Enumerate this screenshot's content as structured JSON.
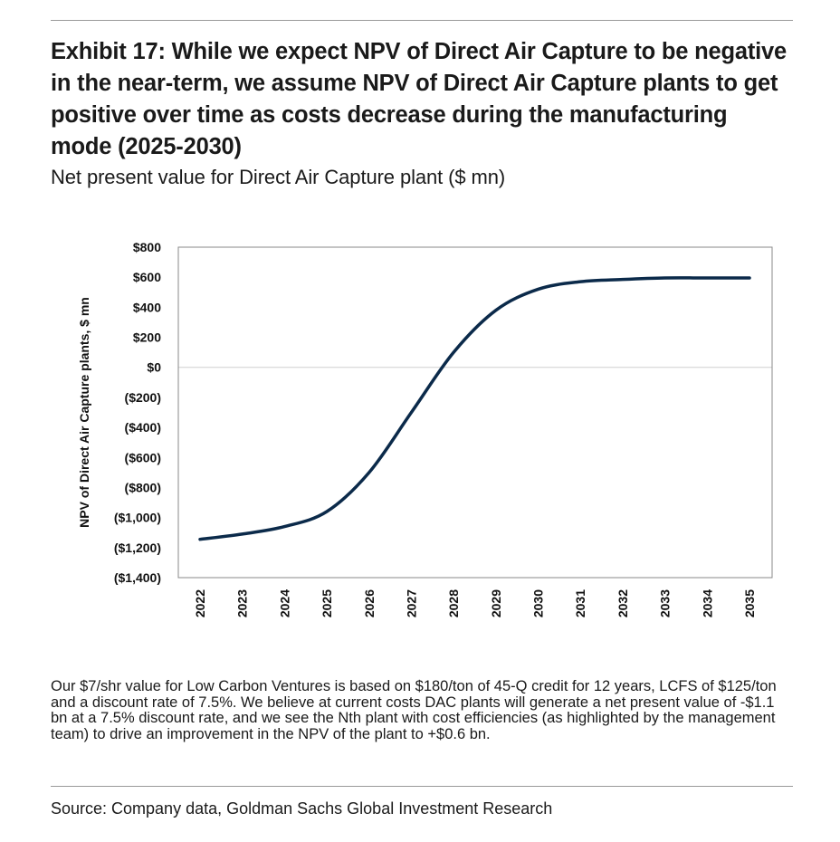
{
  "header": {
    "title": "Exhibit 17: While we expect NPV of Direct Air Capture to be negative in the near-term, we assume NPV of Direct Air Capture plants to get positive over time as costs decrease during the manufacturing mode (2025-2030)",
    "subtitle": "Net present value for Direct Air Capture plant ($ mn)"
  },
  "chart_data": {
    "type": "line",
    "title": "",
    "xlabel": "",
    "ylabel": "NPV of Direct Air Capture plants, $ mn",
    "x": [
      "2022",
      "2023",
      "2024",
      "2025",
      "2026",
      "2027",
      "2028",
      "2029",
      "2030",
      "2031",
      "2032",
      "2033",
      "2034",
      "2035"
    ],
    "series": [
      {
        "values": [
          -1145,
          -1110,
          -1060,
          -960,
          -700,
          -300,
          100,
          380,
          520,
          570,
          585,
          595,
          595,
          595
        ]
      }
    ],
    "ylim": [
      -1400,
      800
    ],
    "yticks": [
      800,
      600,
      400,
      200,
      0,
      -200,
      -400,
      -600,
      -800,
      -1000,
      -1200,
      -1400
    ],
    "ytick_labels": [
      "$800",
      "$600",
      "$400",
      "$200",
      "$0",
      "($200)",
      "($400)",
      "($600)",
      "($800)",
      "($1,000)",
      "($1,200)",
      "($1,400)"
    ],
    "grid": false,
    "zero_line": true,
    "legend": "none",
    "colors": {
      "series": "#0b2a4a",
      "zero_line": "#cfcfcf",
      "frame": "#8a8a8a"
    }
  },
  "note": "Our $7/shr value for Low Carbon Ventures is based on $180/ton of 45-Q credit for 12 years, LCFS of $125/ton and a discount rate of 7.5%. We believe at current costs DAC plants will generate a net present value of -$1.1 bn at a 7.5% discount rate, and we see the Nth plant with cost efficiencies (as highlighted by the management team) to drive an improvement in the NPV of the plant to +$0.6 bn.",
  "source": "Source: Company data, Goldman Sachs Global Investment Research"
}
